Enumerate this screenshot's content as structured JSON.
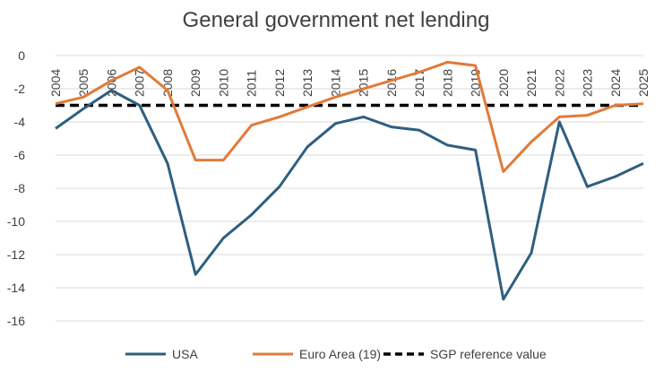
{
  "chart_data": {
    "type": "line",
    "title": "General government net lending",
    "x": [
      "2004",
      "2005",
      "2006",
      "2007",
      "2008",
      "2009",
      "2010",
      "2011",
      "2012",
      "2013",
      "2014",
      "2015",
      "2016",
      "2017",
      "2018",
      "2019",
      "2020",
      "2021",
      "2022",
      "2023",
      "2024",
      "2025"
    ],
    "ylim": [
      -16,
      0
    ],
    "yticks": [
      0,
      -2,
      -4,
      -6,
      -8,
      -10,
      -12,
      -14,
      -16
    ],
    "grid": true,
    "legend_position": "bottom",
    "series": [
      {
        "name": "USA",
        "color": "#2e5f7f",
        "style": "solid",
        "values": [
          -4.4,
          -3.2,
          -2.1,
          -3.0,
          -6.5,
          -13.2,
          -11.0,
          -9.6,
          -7.9,
          -5.5,
          -4.1,
          -3.7,
          -4.3,
          -4.5,
          -5.4,
          -5.7,
          -14.7,
          -11.9,
          -4.0,
          -7.9,
          -7.3,
          -6.5
        ]
      },
      {
        "name": "Euro Area (19)",
        "color": "#e07b39",
        "style": "solid",
        "values": [
          -2.9,
          -2.5,
          -1.5,
          -0.7,
          -2.1,
          -6.3,
          -6.3,
          -4.2,
          -3.7,
          -3.1,
          -2.5,
          -2.0,
          -1.5,
          -1.0,
          -0.4,
          -0.6,
          -7.0,
          -5.2,
          -3.7,
          -3.6,
          -3.0,
          -2.9
        ]
      },
      {
        "name": "SGP reference value",
        "color": "#000000",
        "style": "dashed",
        "values": [
          -3,
          -3,
          -3,
          -3,
          -3,
          -3,
          -3,
          -3,
          -3,
          -3,
          -3,
          -3,
          -3,
          -3,
          -3,
          -3,
          -3,
          -3,
          -3,
          -3,
          -3,
          -3
        ]
      }
    ]
  }
}
